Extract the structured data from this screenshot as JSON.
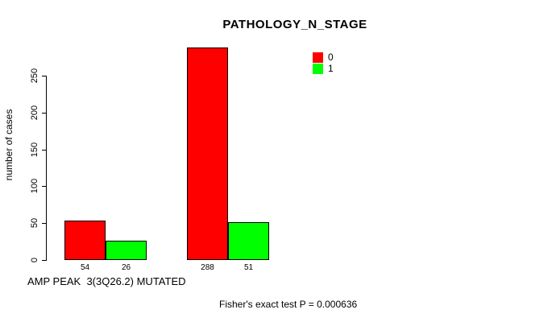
{
  "chart_data": {
    "type": "bar",
    "title": "PATHOLOGY_N_STAGE",
    "ylabel": "number of cases",
    "xlabel": "AMP PEAK  3(3Q26.2) MUTATED",
    "annotation": "Fisher's exact test P = 0.000636",
    "yticks": [
      0,
      50,
      100,
      150,
      200,
      250
    ],
    "ylim": [
      0,
      288
    ],
    "grid": false,
    "legend_position": "top-right",
    "series": [
      {
        "name": "0",
        "color": "#ff0000",
        "values": [
          54,
          288
        ]
      },
      {
        "name": "1",
        "color": "#00ff00",
        "values": [
          26,
          51
        ]
      }
    ],
    "bar_labels": [
      "54",
      "26",
      "288",
      "51"
    ],
    "legend": [
      {
        "label": "0",
        "color": "#ff0000"
      },
      {
        "label": "1",
        "color": "#00ff00"
      }
    ]
  }
}
